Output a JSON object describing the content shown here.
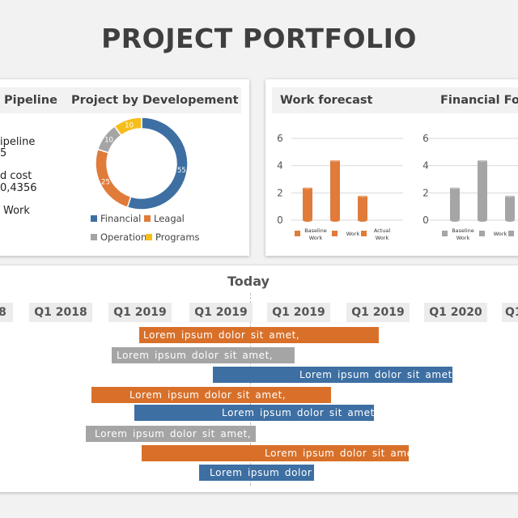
{
  "title": "PROJECT PORTFOLIO",
  "left_panel": {
    "header_pipeline": "Pipeline",
    "header_development": "Project by Developement",
    "stats": [
      "ipeline",
      "5",
      "d cost",
      "0,4356",
      "Work"
    ]
  },
  "right_panel": {
    "header_work": "Work forecast",
    "header_financial": "Financial  Fo"
  },
  "timeline": {
    "today_label": "Today",
    "quarters": [
      "8",
      "Q1 2018",
      "Q1 2019",
      "Q1 2019",
      "Q1 2019",
      "Q1 2019",
      "Q1 2020",
      "Q1"
    ],
    "tasks": [
      {
        "label": "Lorem  ipsum  dolor  sit amet,",
        "color": "#d8702a"
      },
      {
        "label": "Lorem  ipsum  dolor  sit amet,",
        "color": "#a5a5a5"
      },
      {
        "label": "Lorem  ipsum  dolor  sit amet,",
        "color": "#3d6fa3"
      },
      {
        "label": "Lorem  ipsum  dolor  sit amet,",
        "color": "#d8702a"
      },
      {
        "label": "Lorem  ipsum  dolor  sit amet,",
        "color": "#3d6fa3"
      },
      {
        "label": "Lorem  ipsum  dolor  sit amet,",
        "color": "#a5a5a5"
      },
      {
        "label": "Lorem  ipsum  dolor  sit amet,",
        "color": "#d8702a"
      },
      {
        "label": "Lorem  ipsum  dolor",
        "color": "#3d6fa3"
      }
    ]
  },
  "chart_data": [
    {
      "type": "pie",
      "title": "Project by Developement",
      "categories": [
        "Financial",
        "Leagal",
        "Operation",
        "Programs"
      ],
      "values": [
        55,
        25,
        10,
        10
      ],
      "colors": [
        "#3d6fa3",
        "#e07b39",
        "#a5a5a5",
        "#f5be1a"
      ],
      "legend": "bottom"
    },
    {
      "type": "bar",
      "title": "Work forecast",
      "categories": [
        "Baseline Work",
        "Work",
        "Actual Work"
      ],
      "values": [
        2.4,
        4.4,
        1.8
      ],
      "yticks": [
        0,
        2,
        4,
        6
      ],
      "ylim": [
        0,
        6
      ],
      "color": "#e07b39",
      "grid": true,
      "legend": "bottom"
    },
    {
      "type": "bar",
      "title": "Financial  Fo",
      "categories": [
        "Baseline Work",
        "Work",
        ""
      ],
      "values": [
        2.4,
        4.4,
        1.8
      ],
      "yticks": [
        0,
        2,
        4,
        6
      ],
      "ylim": [
        0,
        6
      ],
      "color": "#a5a5a5",
      "grid": true,
      "legend": "bottom"
    }
  ]
}
